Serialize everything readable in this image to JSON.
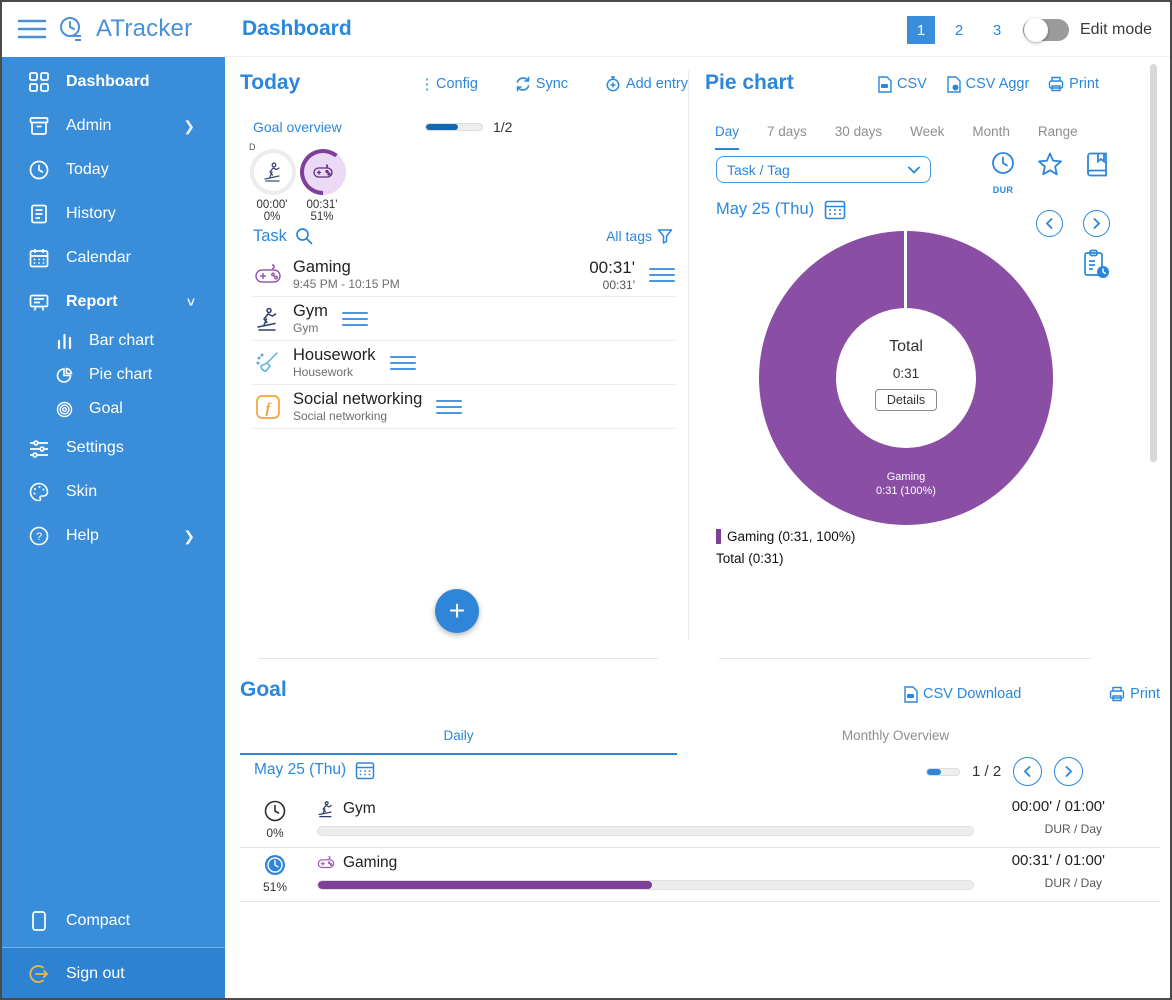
{
  "colors": {
    "accent": "#2b87db",
    "sidebar_blue": "#3a8ed9",
    "donut_purple": "#8a4fa5",
    "goal_bar_purple": "#7d3f98",
    "facebook_orange": "#f0a43c",
    "signout_yellow": "#e4b94e"
  },
  "sidebar": {
    "brand": "ATracker",
    "items": [
      {
        "label": "Dashboard"
      },
      {
        "label": "Admin"
      },
      {
        "label": "Today"
      },
      {
        "label": "History"
      },
      {
        "label": "Calendar"
      },
      {
        "label": "Report"
      },
      {
        "label": "Bar chart"
      },
      {
        "label": "Pie chart"
      },
      {
        "label": "Goal"
      },
      {
        "label": "Settings"
      },
      {
        "label": "Skin"
      },
      {
        "label": "Help"
      },
      {
        "label": "Compact"
      },
      {
        "label": "Sign out"
      }
    ]
  },
  "header": {
    "title": "Dashboard",
    "pages": [
      "1",
      "2",
      "3"
    ],
    "active_page": "1",
    "edit_mode_label": "Edit mode"
  },
  "today": {
    "title": "Today",
    "config_label": "Config",
    "sync_label": "Sync",
    "add_entry_label": "Add entry",
    "goal_overview_label": "Goal overview",
    "goal_overview_fraction": "1/2",
    "goal_overview_progress_pct": 58,
    "d_label": "D",
    "goal_circles": [
      {
        "task": "Gym",
        "time": "00:00'",
        "pct": "0%"
      },
      {
        "task": "Gaming",
        "time": "00:31'",
        "pct": "51%"
      }
    ],
    "task_header": "Task",
    "all_tags_label": "All tags",
    "tasks": [
      {
        "name": "Gaming",
        "subtitle": "9:45 PM - 10:15 PM",
        "duration": "00:31'",
        "duration_small": "00:31'"
      },
      {
        "name": "Gym",
        "subtitle": "Gym",
        "duration": "",
        "duration_small": ""
      },
      {
        "name": "Housework",
        "subtitle": "Housework",
        "duration": "",
        "duration_small": ""
      },
      {
        "name": "Social networking",
        "subtitle": "Social networking",
        "duration": "",
        "duration_small": ""
      }
    ],
    "fab_label": "+"
  },
  "pie": {
    "title": "Pie chart",
    "csv_label": "CSV",
    "csv_aggr_label": "CSV Aggr",
    "print_label": "Print",
    "tabs": [
      "Day",
      "7 days",
      "30 days",
      "Week",
      "Month",
      "Range"
    ],
    "active_tab": "Day",
    "dropdown_value": "Task / Tag",
    "dur_label": "DUR",
    "date": "May 25 (Thu)",
    "center_title": "Total",
    "center_value": "0:31",
    "details_label": "Details",
    "slice_label": "Gaming",
    "slice_value": "0:31 (100%)",
    "legend": [
      {
        "text": "Gaming (0:31, 100%)",
        "marker": "#7d3f98"
      },
      {
        "text": "Total (0:31)",
        "marker": null
      }
    ]
  },
  "goal": {
    "title": "Goal",
    "csv_download_label": "CSV Download",
    "print_label": "Print",
    "tabs": [
      "Daily",
      "Monthly Overview"
    ],
    "active_tab": "Daily",
    "date": "May 25 (Thu)",
    "pagination": "1 / 2",
    "pagination_progress_pct": 45,
    "rows": [
      {
        "pct": "0%",
        "name": "Gym",
        "value": "00:00' / 01:00'",
        "unit": "DUR / Day",
        "progress_pct": 0
      },
      {
        "pct": "51%",
        "name": "Gaming",
        "value": "00:31' / 01:00'",
        "unit": "DUR / Day",
        "progress_pct": 51
      }
    ]
  },
  "chart_data": {
    "type": "pie",
    "title": "Pie chart",
    "date": "May 25 (Thu)",
    "series": [
      {
        "name": "Gaming",
        "duration": "0:31",
        "percent": 100,
        "color": "#8a4fa5"
      }
    ],
    "total": {
      "label": "Total",
      "duration": "0:31"
    },
    "legend_position": "bottom-left",
    "donut": true
  }
}
